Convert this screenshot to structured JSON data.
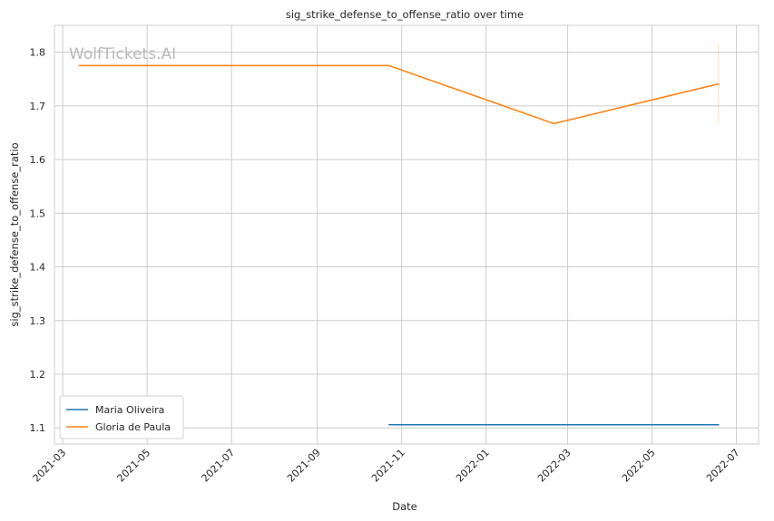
{
  "chart_data": {
    "type": "line",
    "title": "sig_strike_defense_to_offense_ratio over time",
    "xlabel": "Date",
    "ylabel": "sig_strike_defense_to_offense_ratio",
    "x_ticks": [
      "2021-03",
      "2021-05",
      "2021-07",
      "2021-09",
      "2021-11",
      "2022-01",
      "2022-03",
      "2022-05",
      "2022-07"
    ],
    "y_ticks": [
      "1.1",
      "1.2",
      "1.3",
      "1.4",
      "1.5",
      "1.6",
      "1.7",
      "1.8"
    ],
    "ylim": [
      1.07,
      1.85
    ],
    "xlim": [
      "2021-02-23",
      "2022-07-17"
    ],
    "grid": true,
    "legend_position": "bottom-left",
    "watermark": "WolfTickets.AI",
    "series": [
      {
        "name": "Maria Oliveira",
        "color": "#1f77b4",
        "x": [
          "2021-10-23",
          "2022-06-18"
        ],
        "y": [
          1.106,
          1.106
        ]
      },
      {
        "name": "Gloria de Paula",
        "color": "#ff7f0e",
        "x": [
          "2021-03-13",
          "2021-10-23",
          "2022-02-19",
          "2022-06-18"
        ],
        "y": [
          1.775,
          1.775,
          1.667,
          1.741
        ]
      }
    ],
    "error_bar": {
      "x": "2022-06-18",
      "y_low": 1.667,
      "y_high": 1.815,
      "color": "#ff7f0e"
    }
  }
}
